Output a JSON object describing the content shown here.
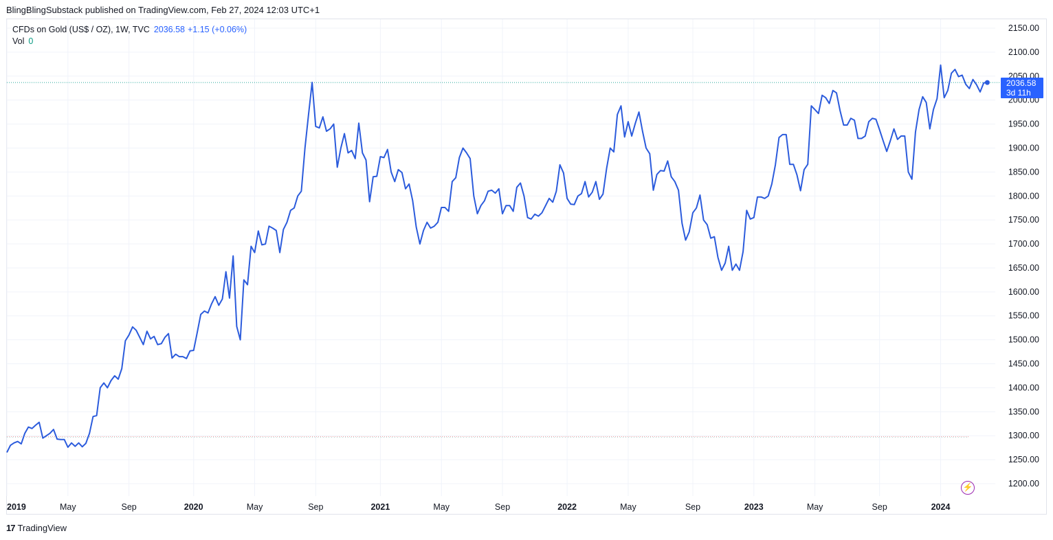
{
  "publisher": "BlingBlingSubstack published on TradingView.com, Feb 27, 2024 12:03 UTC+1",
  "legend": {
    "symbol": "CFDs on Gold (US$ / OZ), 1W, TVC",
    "last": "2036.58",
    "change": "+1.15 (+0.06%)",
    "vol_label": "Vol",
    "vol_value": "0"
  },
  "price_tag": {
    "price": "2036.58",
    "countdown": "3d 11h"
  },
  "logo": "TradingView",
  "colors": {
    "line": "#2b5bdc",
    "tag": "#2962ff",
    "grid": "#f0f3fa",
    "axis_text": "#131722"
  },
  "chart_data": {
    "type": "line",
    "title": "CFDs on Gold (US$ / OZ), 1W, TVC",
    "ylim": [
      1175,
      2175
    ],
    "grid": true,
    "y_ticks": [
      1200,
      1250,
      1300,
      1350,
      1400,
      1450,
      1500,
      1550,
      1600,
      1650,
      1700,
      1750,
      1800,
      1850,
      1900,
      1950,
      2000,
      2050,
      2100,
      2150
    ],
    "y_tick_labels": [
      "1200.00",
      "1250.00",
      "1300.00",
      "1350.00",
      "1400.00",
      "1450.00",
      "1500.00",
      "1550.00",
      "1600.00",
      "1650.00",
      "1700.00",
      "1750.00",
      "1800.00",
      "1850.00",
      "1900.00",
      "1950.00",
      "2000.00",
      "2050.00",
      "2100.00",
      "2150.00"
    ],
    "x_ticks": [
      {
        "label": "2019",
        "week": 0,
        "bold": true
      },
      {
        "label": "May",
        "week": 17,
        "bold": false
      },
      {
        "label": "Sep",
        "week": 34,
        "bold": false
      },
      {
        "label": "2020",
        "week": 52,
        "bold": true
      },
      {
        "label": "May",
        "week": 69,
        "bold": false
      },
      {
        "label": "Sep",
        "week": 86,
        "bold": false
      },
      {
        "label": "2021",
        "week": 104,
        "bold": true
      },
      {
        "label": "May",
        "week": 121,
        "bold": false
      },
      {
        "label": "Sep",
        "week": 138,
        "bold": false
      },
      {
        "label": "2022",
        "week": 156,
        "bold": true
      },
      {
        "label": "May",
        "week": 173,
        "bold": false
      },
      {
        "label": "Sep",
        "week": 191,
        "bold": false
      },
      {
        "label": "2023",
        "week": 208,
        "bold": true
      },
      {
        "label": "May",
        "week": 225,
        "bold": false
      },
      {
        "label": "Sep",
        "week": 243,
        "bold": false
      },
      {
        "label": "2024",
        "week": 260,
        "bold": true
      }
    ],
    "reference_level": 1298,
    "last_value": 2036.58,
    "series": [
      {
        "values": [
          1265,
          1280,
          1285,
          1288,
          1283,
          1305,
          1318,
          1315,
          1322,
          1328,
          1295,
          1300,
          1305,
          1313,
          1293,
          1292,
          1292,
          1276,
          1285,
          1278,
          1285,
          1277,
          1284,
          1305,
          1340,
          1342,
          1400,
          1410,
          1400,
          1415,
          1425,
          1418,
          1440,
          1498,
          1510,
          1527,
          1520,
          1505,
          1490,
          1518,
          1502,
          1507,
          1490,
          1492,
          1505,
          1513,
          1462,
          1470,
          1465,
          1465,
          1461,
          1477,
          1478,
          1515,
          1553,
          1560,
          1556,
          1575,
          1590,
          1572,
          1585,
          1642,
          1587,
          1675,
          1528,
          1500,
          1625,
          1615,
          1695,
          1682,
          1727,
          1698,
          1700,
          1737,
          1733,
          1728,
          1682,
          1730,
          1745,
          1770,
          1775,
          1800,
          1810,
          1900,
          1970,
          2037,
          1945,
          1942,
          1965,
          1935,
          1940,
          1950,
          1860,
          1900,
          1930,
          1890,
          1895,
          1878,
          1952,
          1890,
          1875,
          1788,
          1840,
          1841,
          1882,
          1880,
          1897,
          1850,
          1830,
          1855,
          1849,
          1815,
          1825,
          1790,
          1735,
          1700,
          1728,
          1745,
          1733,
          1737,
          1745,
          1776,
          1776,
          1768,
          1830,
          1838,
          1880,
          1900,
          1890,
          1878,
          1800,
          1763,
          1780,
          1790,
          1810,
          1812,
          1806,
          1815,
          1763,
          1780,
          1780,
          1768,
          1818,
          1827,
          1800,
          1755,
          1752,
          1762,
          1758,
          1765,
          1780,
          1795,
          1787,
          1810,
          1865,
          1848,
          1795,
          1783,
          1782,
          1800,
          1805,
          1830,
          1798,
          1808,
          1830,
          1793,
          1804,
          1858,
          1900,
          1892,
          1970,
          1988,
          1923,
          1955,
          1925,
          1952,
          1975,
          1935,
          1900,
          1888,
          1812,
          1845,
          1853,
          1852,
          1873,
          1840,
          1830,
          1812,
          1743,
          1708,
          1725,
          1765,
          1775,
          1802,
          1750,
          1740,
          1712,
          1715,
          1672,
          1645,
          1660,
          1695,
          1645,
          1658,
          1645,
          1684,
          1770,
          1752,
          1755,
          1798,
          1798,
          1795,
          1800,
          1825,
          1865,
          1922,
          1928,
          1928,
          1866,
          1866,
          1844,
          1811,
          1855,
          1866,
          1988,
          1980,
          1972,
          2010,
          2005,
          1993,
          2020,
          2015,
          1978,
          1948,
          1948,
          1962,
          1958,
          1920,
          1920,
          1925,
          1955,
          1962,
          1960,
          1938,
          1915,
          1893,
          1915,
          1940,
          1918,
          1925,
          1925,
          1850,
          1835,
          1933,
          1980,
          2007,
          1995,
          1940,
          1980,
          2003,
          2073,
          2005,
          2020,
          2056,
          2064,
          2049,
          2052,
          2033,
          2024,
          2043,
          2032,
          2017,
          2036,
          2036.58
        ]
      }
    ]
  }
}
